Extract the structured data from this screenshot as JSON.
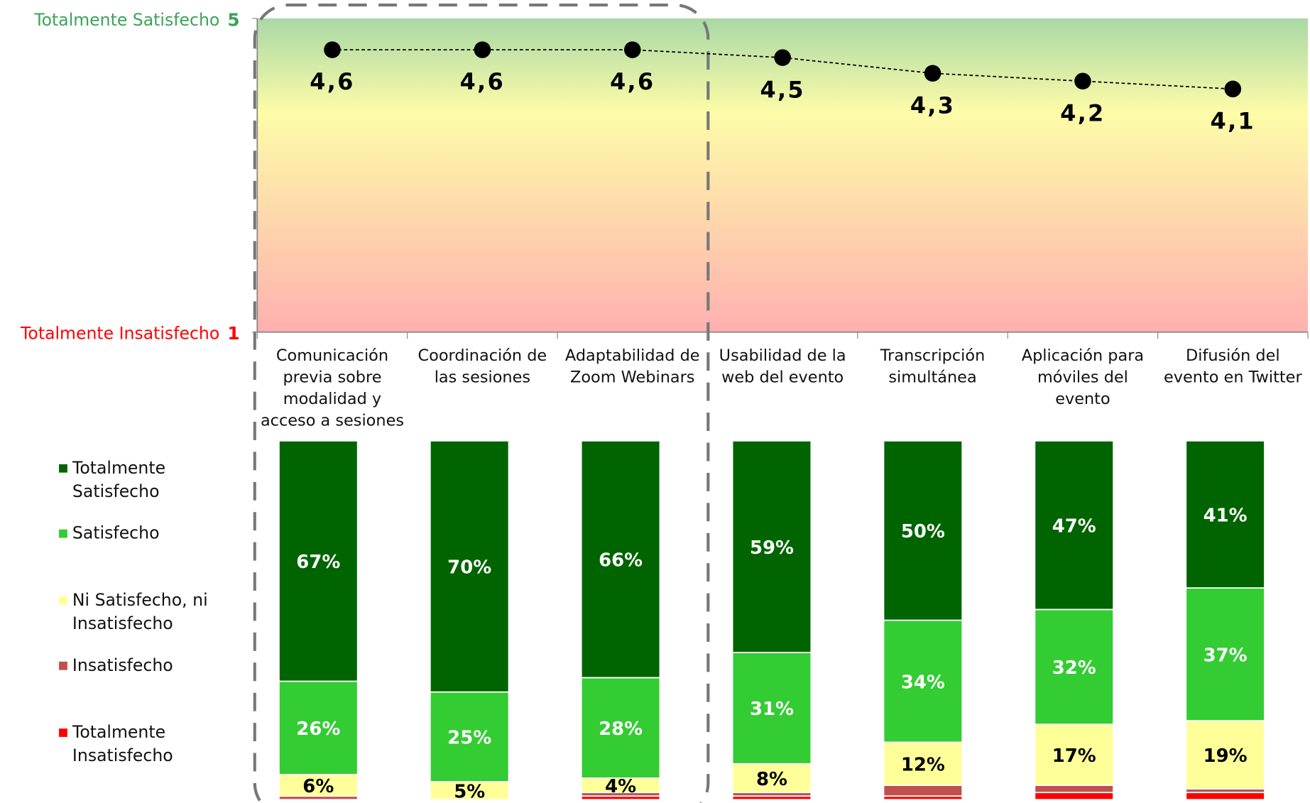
{
  "chart_data": [
    {
      "type": "line",
      "categories": [
        "Comunicación previa sobre modalidad y acceso a sesiones",
        "Coordinación de las sesiones",
        "Adaptabilidad de Zoom Webinars",
        "Usabilidad de la web del evento",
        "Transcripción simultánea",
        "Aplicación para móviles del evento",
        "Difusión del evento en Twitter"
      ],
      "values": [
        4.6,
        4.6,
        4.6,
        4.5,
        4.3,
        4.2,
        4.1
      ],
      "value_labels": [
        "4,6",
        "4,6",
        "4,6",
        "4,5",
        "4,3",
        "4,2",
        "4,1"
      ],
      "ylim": [
        1,
        5
      ],
      "yticks": [
        1,
        5
      ],
      "y_annotations": [
        {
          "value": 5,
          "text": "Totalmente Satisfecho",
          "color": "#3aa35a"
        },
        {
          "value": 1,
          "text": "Totalmente Insatisfecho",
          "color": "#ff0000"
        }
      ],
      "color": "#000000"
    },
    {
      "type": "stacked_bar",
      "ylim": [
        0,
        100
      ],
      "legend": "left",
      "series": [
        {
          "name": "Totalmente Satisfecho",
          "color": "#006400",
          "values": [
            67,
            70,
            66,
            59,
            50,
            47,
            41
          ],
          "value_labels": [
            "67%",
            "70%",
            "66%",
            "59%",
            "50%",
            "47%",
            "41%"
          ]
        },
        {
          "name": "Satisfecho",
          "color": "#33cc33",
          "values": [
            26,
            25,
            28,
            31,
            34,
            32,
            37
          ],
          "value_labels": [
            "26%",
            "25%",
            "28%",
            "31%",
            "34%",
            "32%",
            "37%"
          ]
        },
        {
          "name": "Ni Satisfecho, ni Insatisfecho",
          "color": "#ffff99",
          "values": [
            6,
            5,
            4,
            8,
            12,
            17,
            19
          ],
          "value_labels": [
            "6%",
            "5%",
            "4%",
            "8%",
            "12%",
            "17%",
            "19%"
          ]
        },
        {
          "name": "Insatisfecho",
          "color": "#c0504d",
          "values": [
            1,
            0,
            1,
            1,
            3,
            2,
            1
          ]
        },
        {
          "name": "Totalmente Insatisfecho",
          "color": "#ff0000",
          "values": [
            0,
            0,
            1,
            1,
            1,
            2,
            2
          ]
        }
      ]
    }
  ]
}
